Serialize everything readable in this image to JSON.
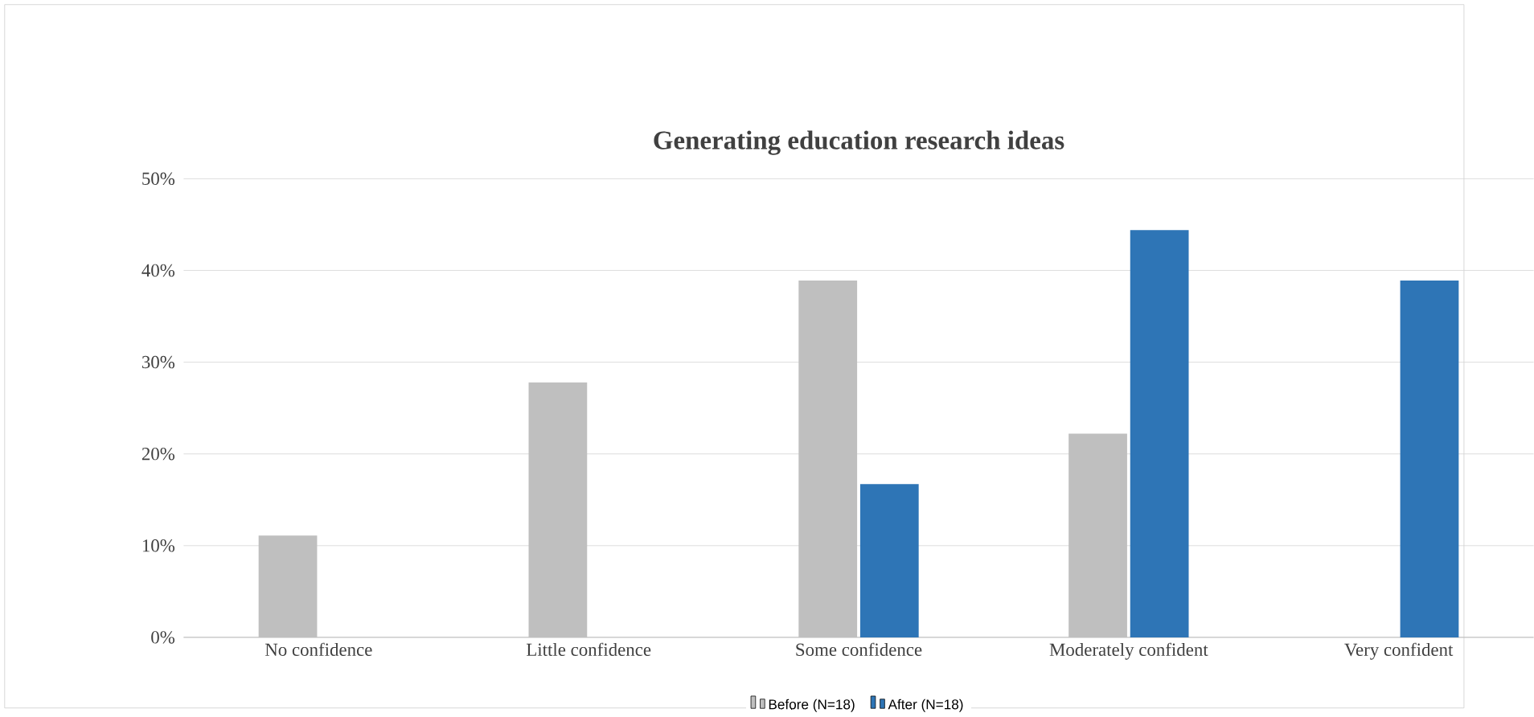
{
  "chart_data": {
    "type": "bar",
    "title": "Generating education research ideas",
    "categories": [
      "No confidence",
      "Little confidence",
      "Some confidence",
      "Moderately confident",
      "Very confident"
    ],
    "series": [
      {
        "name": "Before (N=18)",
        "color": "#bfbfbf",
        "values": [
          11.1,
          27.8,
          38.9,
          22.2,
          0
        ]
      },
      {
        "name": "After (N=18)",
        "color": "#2e75b6",
        "values": [
          0,
          0,
          16.7,
          44.4,
          38.9
        ]
      }
    ],
    "ylim": [
      0,
      50
    ],
    "yticks": [
      {
        "value": 0,
        "label": "0%"
      },
      {
        "value": 10,
        "label": "10%"
      },
      {
        "value": 20,
        "label": "20%"
      },
      {
        "value": 30,
        "label": "30%"
      },
      {
        "value": 40,
        "label": "40%"
      },
      {
        "value": 50,
        "label": "50%"
      }
    ],
    "grid": "y",
    "legend": "bottom"
  }
}
